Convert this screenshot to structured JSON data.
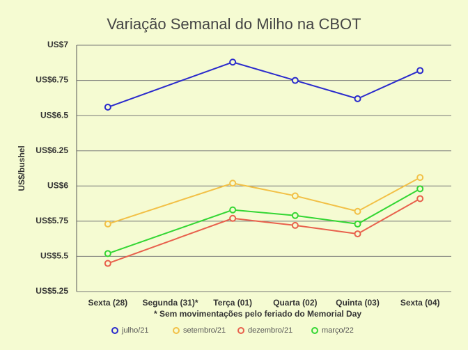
{
  "chart_data": {
    "type": "line",
    "title": "Variação Semanal do Milho na CBOT",
    "x_label": "* Sem movimentações pelo feriado do Memorial Day",
    "y_label": "US$/bushel",
    "categories": [
      "Sexta (28)",
      "Segunda (31)*",
      "Terça (01)",
      "Quarta (02)",
      "Quinta (03)",
      "Sexta (04)"
    ],
    "series": [
      {
        "name": "julho/21",
        "color": "#2a2acc",
        "values": [
          6.56,
          null,
          6.88,
          6.75,
          6.62,
          6.82
        ]
      },
      {
        "name": "setembro/21",
        "color": "#f2c046",
        "values": [
          5.73,
          null,
          6.02,
          5.93,
          5.82,
          6.06
        ]
      },
      {
        "name": "dezembro/21",
        "color": "#e8604c",
        "values": [
          5.45,
          null,
          5.77,
          5.72,
          5.66,
          5.91
        ]
      },
      {
        "name": "março/22",
        "color": "#33d633",
        "values": [
          5.52,
          null,
          5.83,
          5.79,
          5.73,
          5.98
        ]
      }
    ],
    "connect_gaps": true,
    "ylim": [
      5.25,
      7
    ],
    "yticks": [
      {
        "value": 5.25,
        "label": "US$5.25"
      },
      {
        "value": 5.5,
        "label": "US$5.5"
      },
      {
        "value": 5.75,
        "label": "US$5.75"
      },
      {
        "value": 6,
        "label": "US$6"
      },
      {
        "value": 6.25,
        "label": "US$6.25"
      },
      {
        "value": 6.5,
        "label": "US$6.5"
      },
      {
        "value": 6.75,
        "label": "US$6.75"
      },
      {
        "value": 7,
        "label": "US$7"
      }
    ],
    "grid": true,
    "legend": "bottom"
  }
}
